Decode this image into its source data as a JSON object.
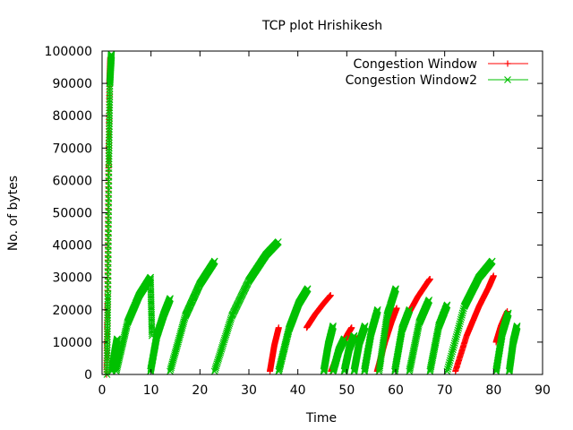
{
  "chart_data": {
    "type": "line",
    "title": "TCP plot Hrishikesh",
    "xlabel": "Time",
    "ylabel": "No. of bytes",
    "xlim": [
      0,
      90
    ],
    "ylim": [
      0,
      100000
    ],
    "xticks": [
      0,
      10,
      20,
      30,
      40,
      50,
      60,
      70,
      80,
      90
    ],
    "yticks": [
      0,
      10000,
      20000,
      30000,
      40000,
      50000,
      60000,
      70000,
      80000,
      90000,
      100000
    ],
    "grid": false,
    "legend_position": "top-right",
    "series": [
      {
        "name": "Congestion Window",
        "color": "#ff0000",
        "marker": "plus",
        "segments": [
          {
            "x": [
              0.9,
              1.1,
              1.3,
              1.5,
              1.7
            ],
            "y": [
              0,
              22000,
              62000,
              90000,
              98000
            ]
          },
          {
            "x": [
              34.3,
              35.2,
              36.1
            ],
            "y": [
              1000,
              9000,
              14500
            ]
          },
          {
            "x": [
              41.8,
              43.5,
              45.3,
              46.7
            ],
            "y": [
              14500,
              18500,
              22000,
              24500
            ]
          },
          {
            "x": [
              46.8,
              48.8,
              50.2,
              51.0
            ],
            "y": [
              1000,
              8500,
              12500,
              14500
            ]
          },
          {
            "x": [
              51.2,
              53.3
            ],
            "y": [
              10000,
              12500
            ]
          },
          {
            "x": [
              56.2,
              57.8,
              59.2,
              60.2
            ],
            "y": [
              1000,
              10000,
              16500,
              20500
            ]
          },
          {
            "x": [
              62.5,
              64.5,
              66.5,
              67.0
            ],
            "y": [
              18500,
              24000,
              28500,
              29500
            ]
          },
          {
            "x": [
              72.2,
              74.5,
              77.0,
              79.0,
              80.0
            ],
            "y": [
              1000,
              12000,
              21000,
              27000,
              30500
            ]
          },
          {
            "x": [
              80.5,
              81.5,
              82.8
            ],
            "y": [
              10000,
              15000,
              19500
            ]
          }
        ]
      },
      {
        "name": "Congestion Window2",
        "color": "#00c000",
        "marker": "x",
        "segments": [
          {
            "x": [
              1.0,
              1.2,
              1.4,
              1.6,
              1.8,
              1.9
            ],
            "y": [
              0,
              25000,
              65000,
              90000,
              96000,
              99000
            ]
          },
          {
            "x": [
              2.0,
              2.6,
              3.1
            ],
            "y": [
              1000,
              7000,
              11000
            ]
          },
          {
            "x": [
              2.9,
              5.2,
              7.6,
              9.9
            ],
            "y": [
              1000,
              16000,
              24500,
              30000
            ]
          },
          {
            "x": [
              9.9,
              10.2
            ],
            "y": [
              30000,
              12000
            ]
          },
          {
            "x": [
              9.9,
              11.2,
              12.6,
              13.9
            ],
            "y": [
              1000,
              12000,
              18500,
              23500
            ]
          },
          {
            "x": [
              13.9,
              17.0,
              20.0,
              23.0
            ],
            "y": [
              1000,
              18000,
              28000,
              35000
            ]
          },
          {
            "x": [
              23.0,
              26.5,
              30.0,
              33.5,
              36.0
            ],
            "y": [
              1000,
              18000,
              29000,
              37000,
              41000
            ]
          },
          {
            "x": [
              36.1,
              38.2,
              40.2,
              42.0
            ],
            "y": [
              1000,
              14000,
              22000,
              26500
            ]
          },
          {
            "x": [
              45.3,
              46.2,
              47.2
            ],
            "y": [
              1000,
              9000,
              15000
            ]
          },
          {
            "x": [
              47.2,
              48.4,
              49.5
            ],
            "y": [
              1000,
              7500,
              11000
            ]
          },
          {
            "x": [
              49.5,
              50.5,
              51.5
            ],
            "y": [
              1000,
              8000,
              12000
            ]
          },
          {
            "x": [
              51.5,
              52.6,
              53.7
            ],
            "y": [
              1000,
              10000,
              15000
            ]
          },
          {
            "x": [
              53.6,
              55.0,
              56.3
            ],
            "y": [
              1000,
              13000,
              20000
            ]
          },
          {
            "x": [
              56.6,
              58.2,
              60.0
            ],
            "y": [
              1000,
              18000,
              26500
            ]
          },
          {
            "x": [
              59.8,
              61.3,
              62.8
            ],
            "y": [
              1000,
              14000,
              20000
            ]
          },
          {
            "x": [
              62.8,
              64.8,
              66.8
            ],
            "y": [
              1000,
              16000,
              23000
            ]
          },
          {
            "x": [
              67.0,
              68.8,
              70.5
            ],
            "y": [
              1000,
              15000,
              21500
            ]
          },
          {
            "x": [
              70.5,
              74.0,
              77.0,
              79.7
            ],
            "y": [
              1000,
              21000,
              30000,
              35000
            ]
          },
          {
            "x": [
              80.5,
              81.8,
              83.0
            ],
            "y": [
              1000,
              13000,
              19000
            ]
          },
          {
            "x": [
              83.2,
              84.0,
              84.8
            ],
            "y": [
              1000,
              10000,
              15000
            ]
          }
        ]
      }
    ]
  }
}
